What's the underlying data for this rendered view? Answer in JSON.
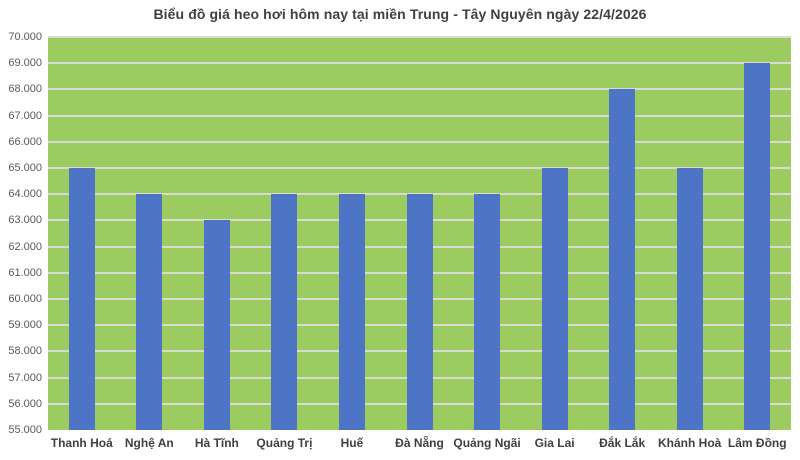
{
  "chart_data": {
    "type": "bar",
    "title": "Biểu đồ giá heo hơi hôm nay tại miền Trung - Tây Nguyên ngày 22/4/2026",
    "categories": [
      "Thanh Hoá",
      "Nghệ An",
      "Hà Tĩnh",
      "Quảng Trị",
      "Huế",
      "Đà Nẵng",
      "Quảng Ngãi",
      "Gia Lai",
      "Đắk Lắk",
      "Khánh Hoà",
      "Lâm Đồng"
    ],
    "values": [
      65000,
      64000,
      63000,
      64000,
      64000,
      64000,
      64000,
      65000,
      68000,
      65000,
      69000
    ],
    "xlabel": "",
    "ylabel": "",
    "ylim": [
      55000,
      70000
    ],
    "ytick_step": 1000,
    "ytick_labels": [
      "55.000",
      "56.000",
      "57.000",
      "58.000",
      "59.000",
      "60.000",
      "61.000",
      "62.000",
      "63.000",
      "64.000",
      "65.000",
      "66.000",
      "67.000",
      "68.000",
      "69.000",
      "70.000"
    ],
    "grid": true,
    "legend": false,
    "colors": {
      "bar": "#4E74C5",
      "plot_background": "#9CCB60",
      "gridline": "#D9DBD3",
      "title_text": "#404040",
      "ytick_text": "#595959",
      "xtick_text": "#404040",
      "page_background": "#FFFFFF"
    }
  }
}
